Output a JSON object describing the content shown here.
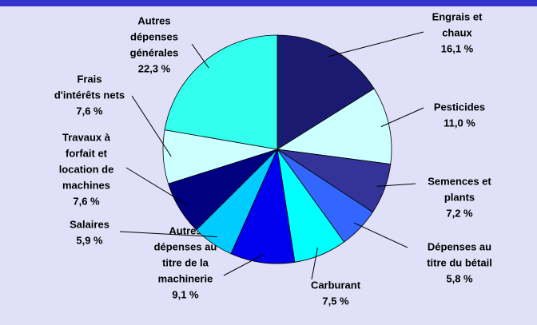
{
  "chart_data": {
    "type": "pie",
    "categories": [
      [
        "Engrais et",
        "chaux"
      ],
      [
        "Pesticides"
      ],
      [
        "Semences et",
        "plants"
      ],
      [
        "Dépenses au",
        "titre du bétail"
      ],
      [
        "Carburant"
      ],
      [
        "Autres",
        "dépenses au",
        "titre de la",
        "machinerie"
      ],
      [
        "Salaires"
      ],
      [
        "Travaux à",
        "forfait et",
        "location de",
        "machines"
      ],
      [
        "Frais",
        "d'intérêts nets"
      ],
      [
        "Autres",
        "dépenses",
        "générales"
      ]
    ],
    "values": [
      16.1,
      11.0,
      7.2,
      5.8,
      7.5,
      9.1,
      5.9,
      7.6,
      7.6,
      22.3
    ],
    "value_labels": [
      "16,1 %",
      "11,0 %",
      "7,2 %",
      "5,8 %",
      "7,5 %",
      "9,1 %",
      "5,9 %",
      "7,6 %",
      "7,6 %",
      "22,3 %"
    ],
    "colors": [
      "#1a1a70",
      "#ccffff",
      "#333399",
      "#3366ff",
      "#00ffff",
      "#0000ee",
      "#00ccff",
      "#000080",
      "#ccffff",
      "#33ffee"
    ]
  }
}
